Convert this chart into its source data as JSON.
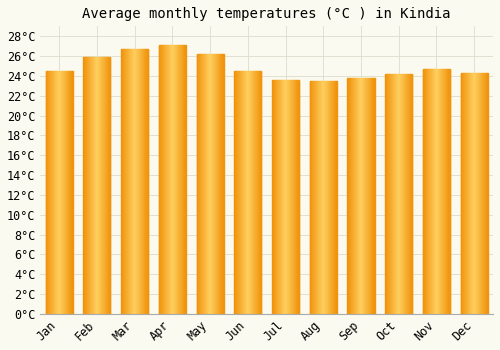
{
  "title": "Average monthly temperatures (°C ) in Kindia",
  "months": [
    "Jan",
    "Feb",
    "Mar",
    "Apr",
    "May",
    "Jun",
    "Jul",
    "Aug",
    "Sep",
    "Oct",
    "Nov",
    "Dec"
  ],
  "temperatures": [
    24.5,
    25.9,
    26.7,
    27.1,
    26.2,
    24.5,
    23.6,
    23.5,
    23.8,
    24.2,
    24.7,
    24.3
  ],
  "bar_color_left": "#F5A623",
  "bar_color_center": "#FFD060",
  "bar_color_right": "#F0920A",
  "background_color": "#FAFAF0",
  "grid_color": "#DDDDCC",
  "ylim": [
    0,
    29
  ],
  "ytick_step": 2,
  "title_fontsize": 10,
  "tick_fontsize": 8.5
}
